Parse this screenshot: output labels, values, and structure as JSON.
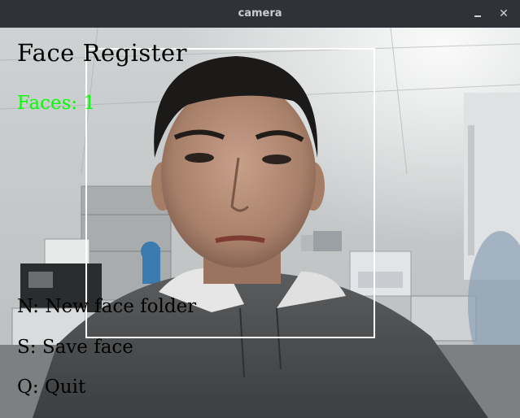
{
  "window": {
    "title": "camera",
    "minimize_icon": "minimize-icon",
    "close_icon": "close-icon",
    "close_glyph": "✕"
  },
  "overlay": {
    "title": "Face Register",
    "faces_label": "Faces: 1",
    "faces_color": "#00ff00",
    "hint_new": "N: New face folder",
    "hint_save": "S: Save face",
    "hint_quit": "Q: Quit",
    "box_color": "#ffffff"
  }
}
